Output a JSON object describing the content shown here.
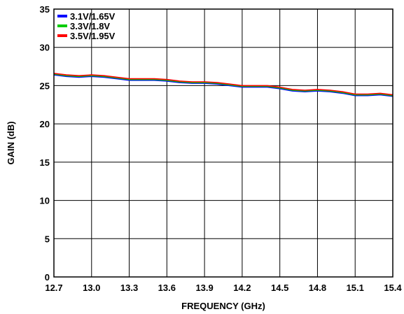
{
  "chart_data": {
    "type": "line",
    "title": "",
    "xlabel": "FREQUENCY (GHz)",
    "ylabel": "GAIN (dB)",
    "xlim": [
      12.7,
      15.4
    ],
    "ylim": [
      0,
      35
    ],
    "xticks": [
      12.7,
      13.0,
      13.3,
      13.6,
      13.9,
      14.2,
      14.5,
      14.8,
      15.1,
      15.4
    ],
    "xtick_labels": [
      "12.7",
      "13.0",
      "13.3",
      "13.6",
      "13.9",
      "14.2",
      "14.5",
      "14.8",
      "15.1",
      "15.4"
    ],
    "yticks": [
      0,
      5,
      10,
      15,
      20,
      25,
      30,
      35
    ],
    "ytick_labels": [
      "0",
      "5",
      "10",
      "15",
      "20",
      "25",
      "30",
      "35"
    ],
    "grid": true,
    "legend_position": "top-left",
    "x": [
      12.7,
      12.8,
      12.9,
      13.0,
      13.1,
      13.2,
      13.3,
      13.4,
      13.5,
      13.6,
      13.7,
      13.8,
      13.9,
      14.0,
      14.1,
      14.2,
      14.3,
      14.4,
      14.5,
      14.6,
      14.7,
      14.8,
      14.9,
      15.0,
      15.1,
      15.2,
      15.3,
      15.4
    ],
    "series": [
      {
        "name": "3.1V/1.65V",
        "color": "#0000ff",
        "values": [
          26.4,
          26.2,
          26.1,
          26.2,
          26.1,
          25.9,
          25.7,
          25.7,
          25.7,
          25.6,
          25.4,
          25.3,
          25.3,
          25.2,
          25.0,
          24.8,
          24.8,
          24.8,
          24.6,
          24.3,
          24.2,
          24.3,
          24.2,
          24.0,
          23.7,
          23.7,
          23.8,
          23.6
        ]
      },
      {
        "name": "3.3V/1.8V",
        "color": "#00cc00",
        "values": [
          26.5,
          26.3,
          26.2,
          26.3,
          26.2,
          26.0,
          25.8,
          25.8,
          25.8,
          25.7,
          25.5,
          25.4,
          25.4,
          25.3,
          25.1,
          24.9,
          24.9,
          24.9,
          24.7,
          24.4,
          24.3,
          24.4,
          24.3,
          24.1,
          23.8,
          23.8,
          23.9,
          23.7
        ]
      },
      {
        "name": "3.5V/1.95V",
        "color": "#ff0000",
        "values": [
          26.6,
          26.4,
          26.3,
          26.4,
          26.3,
          26.1,
          25.9,
          25.9,
          25.9,
          25.8,
          25.6,
          25.5,
          25.5,
          25.4,
          25.2,
          25.0,
          25.0,
          25.0,
          24.8,
          24.5,
          24.4,
          24.5,
          24.4,
          24.2,
          23.9,
          23.9,
          24.0,
          23.8
        ]
      }
    ]
  }
}
